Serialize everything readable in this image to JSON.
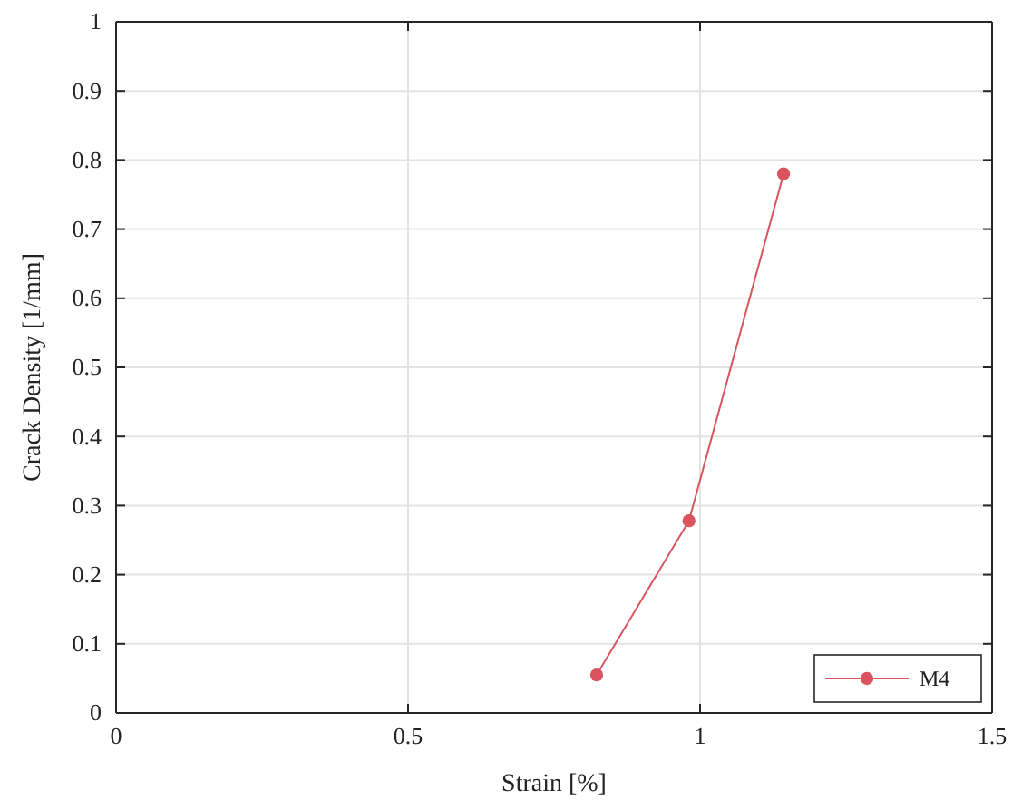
{
  "chart_data": {
    "type": "line",
    "xlabel": "Strain [%]",
    "ylabel": "Crack Density [1/mm]",
    "xlim": [
      0,
      1.5
    ],
    "ylim": [
      0,
      1
    ],
    "xticks": [
      0,
      0.5,
      1,
      1.5
    ],
    "yticks": [
      0,
      0.1,
      0.2,
      0.3,
      0.4,
      0.5,
      0.6,
      0.7,
      0.8,
      0.9,
      1
    ],
    "grid": true,
    "legend": "bottom right",
    "marker": "circle",
    "line_style": "solid",
    "series": [
      {
        "name": "M4",
        "color": "#d9545e",
        "x": [
          0.823,
          0.981,
          1.143
        ],
        "values": [
          0.055,
          0.278,
          0.78
        ]
      }
    ]
  }
}
